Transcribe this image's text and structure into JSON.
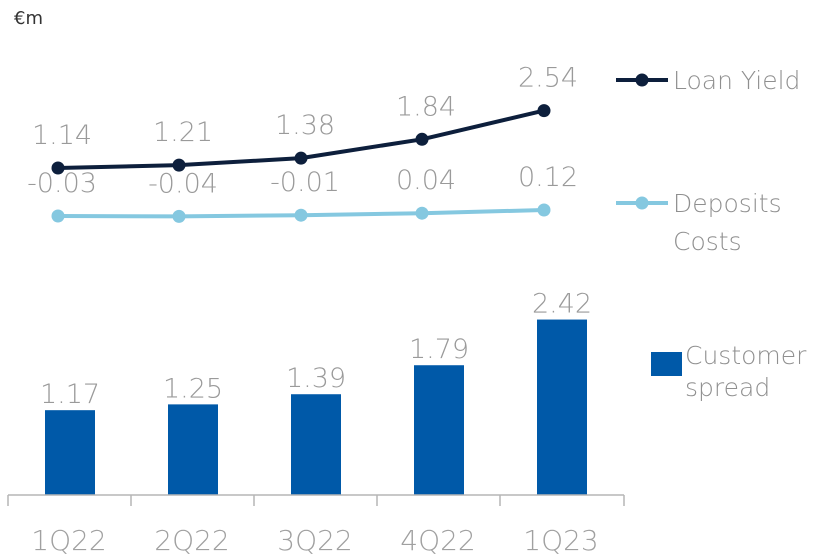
{
  "unit_label": "€m",
  "chart_data": {
    "type": "bar+line",
    "categories": [
      "1Q22",
      "2Q22",
      "3Q22",
      "4Q22",
      "1Q23"
    ],
    "series": [
      {
        "name": "Loan Yield",
        "type": "line",
        "color": "#0d1f3c",
        "values": [
          1.14,
          1.21,
          1.38,
          1.84,
          2.54
        ],
        "labels": [
          "1.14",
          "1.21",
          "1.38",
          "1.84",
          "2.54"
        ]
      },
      {
        "name": "Deposits Costs",
        "name_lines": [
          "Deposits",
          "Costs"
        ],
        "type": "line",
        "color": "#85c8e0",
        "values": [
          -0.03,
          -0.04,
          -0.01,
          0.04,
          0.12
        ],
        "labels": [
          "-0.03",
          "-0.04",
          "-0.01",
          "0.04",
          "0.12"
        ]
      },
      {
        "name": "Customer spread",
        "name_lines": [
          "Customer",
          "spread"
        ],
        "type": "bar",
        "color": "#0059a8",
        "values": [
          1.17,
          1.25,
          1.39,
          1.79,
          2.42
        ],
        "labels": [
          "1.17",
          "1.25",
          "1.39",
          "1.79",
          "2.42"
        ]
      }
    ],
    "grid": false,
    "legend_position": "right"
  }
}
